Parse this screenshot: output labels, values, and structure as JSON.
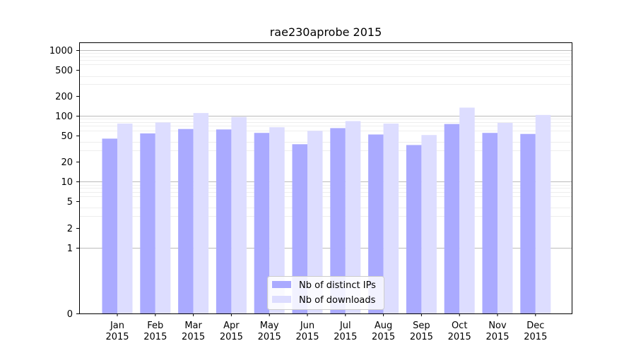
{
  "chart_data": {
    "type": "bar",
    "title": "rae230aprobe 2015",
    "xlabel": "",
    "ylabel": "",
    "yscale": "symlog",
    "ylim": [
      0,
      1300
    ],
    "yticks": [
      0,
      1,
      2,
      5,
      10,
      20,
      50,
      100,
      200,
      500,
      1000
    ],
    "ytick_labels": [
      "0",
      "1",
      "2",
      "5",
      "10",
      "20",
      "50",
      "100",
      "200",
      "500",
      "1000"
    ],
    "categories": [
      "Jan\n2015",
      "Feb\n2015",
      "Mar\n2015",
      "Apr\n2015",
      "May\n2015",
      "Jun\n2015",
      "Jul\n2015",
      "Aug\n2015",
      "Sep\n2015",
      "Oct\n2015",
      "Nov\n2015",
      "Dec\n2015"
    ],
    "series": [
      {
        "name": "Nb of distinct IPs",
        "color": "#aaaaff",
        "values": [
          45,
          54,
          63,
          62,
          55,
          37,
          65,
          52,
          36,
          75,
          55,
          53
        ]
      },
      {
        "name": "Nb of downloads",
        "color": "#ddddff",
        "values": [
          76,
          79,
          110,
          96,
          67,
          59,
          83,
          76,
          51,
          133,
          78,
          103
        ]
      }
    ],
    "grid": true,
    "legend_position": "lower-center"
  }
}
